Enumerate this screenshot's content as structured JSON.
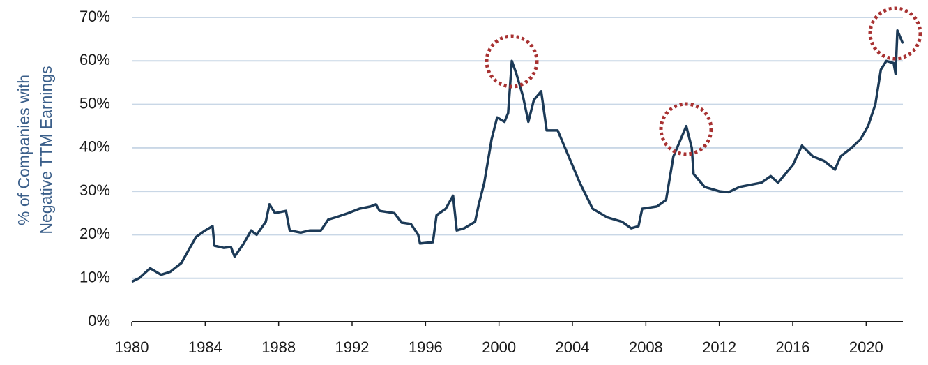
{
  "chart_data": {
    "type": "line",
    "ylabel_lines": [
      "% of Companies with",
      "Negative TTM Earnings"
    ],
    "xlim": [
      1980,
      2022
    ],
    "xticks": [
      1980,
      1984,
      1988,
      1992,
      1996,
      2000,
      2004,
      2008,
      2012,
      2016,
      2020
    ],
    "ylim": [
      0,
      70
    ],
    "yticks": [
      {
        "value": 0,
        "label": "0%"
      },
      {
        "value": 10,
        "label": "10%"
      },
      {
        "value": 20,
        "label": "20%"
      },
      {
        "value": 30,
        "label": "30%"
      },
      {
        "value": 40,
        "label": "40%"
      },
      {
        "value": 50,
        "label": "50%"
      },
      {
        "value": 60,
        "label": "60%"
      },
      {
        "value": 70,
        "label": "70%"
      }
    ],
    "grid": true,
    "x": [
      1980.0,
      1980.4,
      1981.0,
      1981.6,
      1982.1,
      1982.7,
      1983.1,
      1983.5,
      1984.0,
      1984.4,
      1984.5,
      1985.0,
      1985.4,
      1985.6,
      1986.1,
      1986.5,
      1986.8,
      1987.3,
      1987.5,
      1987.8,
      1988.4,
      1988.6,
      1989.2,
      1989.7,
      1990.3,
      1990.7,
      1991.1,
      1991.8,
      1992.4,
      1993.0,
      1993.3,
      1993.5,
      1994.3,
      1994.7,
      1995.2,
      1995.6,
      1995.7,
      1996.4,
      1996.6,
      1997.1,
      1997.5,
      1997.7,
      1998.1,
      1998.7,
      1998.9,
      1999.2,
      1999.6,
      1999.9,
      2000.3,
      2000.5,
      2000.7,
      2000.95,
      2001.3,
      2001.6,
      2001.9,
      2002.3,
      2002.6,
      2003.2,
      2003.8,
      2004.4,
      2005.1,
      2005.9,
      2006.7,
      2007.2,
      2007.6,
      2007.8,
      2008.6,
      2009.1,
      2009.5,
      2009.9,
      2010.2,
      2010.5,
      2010.6,
      2011.2,
      2012.0,
      2012.5,
      2013.1,
      2013.7,
      2014.3,
      2014.8,
      2015.2,
      2016.0,
      2016.5,
      2017.1,
      2017.7,
      2018.3,
      2018.6,
      2019.2,
      2019.7,
      2020.1,
      2020.5,
      2020.8,
      2021.1,
      2021.5,
      2021.6,
      2021.7,
      2022.0
    ],
    "series": [
      {
        "name": "% of Companies with Negative TTM Earnings",
        "color": "#1c3a57",
        "values": [
          9.2,
          10,
          12.3,
          10.8,
          11.5,
          13.5,
          16.5,
          19.5,
          21,
          22,
          17.5,
          17,
          17.2,
          15,
          18,
          21,
          20,
          23,
          27,
          25,
          25.5,
          21,
          20.5,
          21,
          21,
          23.5,
          24,
          25,
          26,
          26.5,
          27,
          25.5,
          25,
          22.8,
          22.5,
          20,
          18,
          18.3,
          24.5,
          26,
          29,
          21,
          21.5,
          23,
          27,
          32,
          42,
          47,
          46,
          48,
          60,
          57,
          52,
          46,
          51,
          53,
          44,
          44,
          38,
          32,
          26,
          24,
          23,
          21.5,
          22,
          26,
          26.5,
          28,
          38,
          42,
          45,
          40,
          34,
          31,
          30,
          29.8,
          31,
          31.5,
          32,
          33.5,
          32,
          36,
          40.5,
          38,
          37,
          35,
          38,
          40,
          42,
          45,
          50,
          58,
          60,
          59.5,
          57,
          67,
          64
        ]
      }
    ]
  }
}
